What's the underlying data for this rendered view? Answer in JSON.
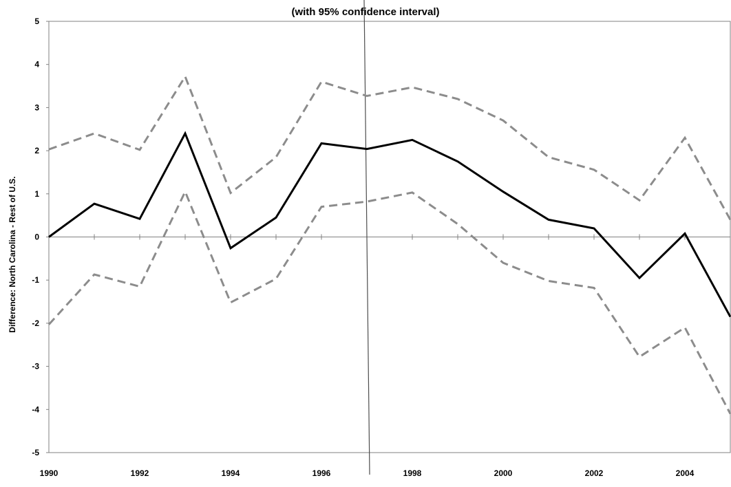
{
  "chart_data": {
    "type": "line",
    "title": "",
    "subtitle": "(with 95% confidence interval)",
    "xlabel": "",
    "ylabel": "Difference:  North Carolina - Rest of U.S.",
    "xlim": [
      1990,
      2005
    ],
    "ylim": [
      -5,
      5
    ],
    "x_ticks": [
      1990,
      1992,
      1994,
      1996,
      1998,
      2000,
      2002,
      2004
    ],
    "y_ticks": [
      5,
      4,
      3,
      2,
      1,
      0,
      -1,
      -2,
      -3,
      -4,
      -5
    ],
    "reference_vline_x": 1997,
    "grid": false,
    "legend": "none",
    "colors": {
      "estimate": "#000000",
      "confidence_interval": "#8c8c8c",
      "axis": "#808080"
    },
    "x": [
      1990,
      1991,
      1992,
      1993,
      1994,
      1995,
      1996,
      1997,
      1998,
      1999,
      2000,
      2001,
      2002,
      2003,
      2004,
      2005
    ],
    "series": [
      {
        "style": "solid",
        "values": [
          0.0,
          0.77,
          0.42,
          2.4,
          -0.26,
          0.45,
          2.17,
          2.04,
          2.25,
          1.75,
          1.05,
          0.4,
          0.2,
          -0.95,
          0.08,
          -1.85
        ]
      },
      {
        "style": "dashed",
        "values": [
          2.03,
          2.4,
          2.02,
          3.72,
          1.02,
          1.85,
          3.6,
          3.27,
          3.47,
          3.2,
          2.7,
          1.85,
          1.56,
          0.85,
          2.3,
          0.4
        ]
      },
      {
        "style": "dashed",
        "values": [
          -2.03,
          -0.87,
          -1.15,
          1.05,
          -1.52,
          -0.97,
          0.7,
          0.82,
          1.03,
          0.3,
          -0.6,
          -1.02,
          -1.18,
          -2.78,
          -2.1,
          -4.1
        ]
      }
    ]
  }
}
